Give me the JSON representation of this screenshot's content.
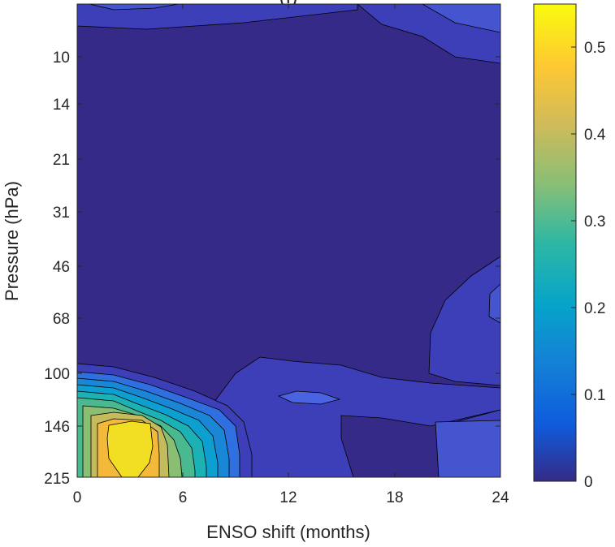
{
  "chart_data": {
    "type": "contour",
    "title": "",
    "title_visible_fragment": "(f)",
    "xlabel": "ENSO shift (months)",
    "ylabel": "Pressure (hPa)",
    "x_ticks": [
      0,
      6,
      12,
      18,
      24
    ],
    "x_tick_labels": [
      "0",
      "6",
      "12",
      "18",
      "24"
    ],
    "y_ticks": [
      10,
      14,
      21,
      31,
      46,
      68,
      100,
      146,
      215
    ],
    "y_tick_labels": [
      "10",
      "14",
      "21",
      "31",
      "46",
      "68",
      "100",
      "146",
      "215"
    ],
    "xlim": [
      0,
      24
    ],
    "y_scale": "log",
    "y_direction": "reverse",
    "colorbar": {
      "ticks": [
        0,
        0.1,
        0.2,
        0.3,
        0.4,
        0.5
      ],
      "tick_labels": [
        "0",
        "0.1",
        "0.2",
        "0.3",
        "0.4",
        "0.5"
      ],
      "range": [
        0,
        0.55
      ],
      "colormap": "parula",
      "stops": [
        "#352a87",
        "#0f5cdd",
        "#1481d6",
        "#06a4ca",
        "#2eb7a4",
        "#87bf77",
        "#d1bb59",
        "#fec832",
        "#f9fb0e"
      ]
    },
    "features": [
      {
        "description": "maximum near x=3 months, p≈170 hPa",
        "value": 0.55
      },
      {
        "description": "secondary band near x=9-17 months, p≈100-140 hPa",
        "value": 0.05
      },
      {
        "description": "weak region x≥20 months, p≥50 hPa",
        "value": 0.06
      }
    ]
  }
}
